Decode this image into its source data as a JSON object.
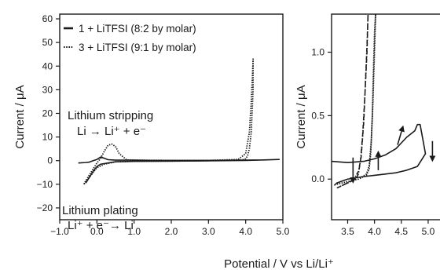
{
  "chart_data": [
    {
      "type": "line",
      "panel": "left",
      "xlabel": "Potential / V vs Li/Li⁺",
      "ylabel": "Current / μA",
      "xlim": [
        -1.0,
        5.0
      ],
      "ylim": [
        -25,
        62
      ],
      "xticks": [
        "−1.0",
        "0.0",
        "1.0",
        "2.0",
        "3.0",
        "4.0",
        "5.0"
      ],
      "xtick_values": [
        -1,
        0,
        1,
        2,
        3,
        4,
        5
      ],
      "yticks": [
        "60",
        "50",
        "40",
        "30",
        "20",
        "10",
        "0",
        "−10",
        "−20"
      ],
      "ytick_values": [
        60,
        50,
        40,
        30,
        20,
        10,
        0,
        -10,
        -20
      ],
      "legend": [
        {
          "label": "1 + LiTFSI (8:2 by molar)",
          "style": "solid"
        },
        {
          "label": "3 + LiTFSI (9:1 by molar)",
          "style": "dotted"
        }
      ],
      "annotations": [
        {
          "text": "Lithium stripping",
          "x": 0.75,
          "y": 17
        },
        {
          "text": "Li → Li⁺ + e⁻",
          "x": 0.75,
          "y": 10
        },
        {
          "text": "Lithium plating",
          "x": 0.0,
          "y": -11
        },
        {
          "text": "Li⁺ + e⁻→ Li",
          "x": 0.0,
          "y": -18
        }
      ],
      "series": [
        {
          "style": "solid",
          "x": [
            -0.5,
            -0.3,
            -0.2,
            -0.1,
            0.0,
            0.1,
            0.2,
            0.3,
            0.5,
            0.8,
            1.0,
            1.5,
            2.0,
            3.0,
            4.0,
            4.5,
            4.9,
            4.5,
            4.0,
            3.0,
            2.0,
            1.0,
            0.5,
            0.3,
            0.1,
            0.0,
            -0.1,
            -0.2,
            -0.3
          ],
          "y": [
            -1.0,
            -0.8,
            -0.6,
            0.0,
            0.5,
            1.5,
            1.0,
            0.4,
            0.2,
            0.2,
            0.2,
            0.1,
            0.1,
            0.1,
            0.2,
            0.3,
            0.5,
            0.3,
            0.1,
            -0.1,
            -0.2,
            -0.3,
            -0.5,
            -1.0,
            -1.5,
            -2.5,
            -4.5,
            -7.0,
            -9.5
          ]
        },
        {
          "style": "dotted",
          "x": [
            -0.35,
            -0.3,
            -0.2,
            -0.1,
            0.0,
            0.1,
            0.2,
            0.3,
            0.4,
            0.5,
            0.6,
            0.8,
            1.0,
            2.0,
            3.0,
            3.8,
            4.0,
            4.1,
            4.15,
            4.18,
            4.2,
            4.2,
            4.15,
            4.1,
            4.05,
            4.0,
            3.9,
            3.0,
            2.0,
            1.0,
            0.5,
            0.2,
            0.0,
            -0.1,
            -0.2,
            -0.3,
            -0.35
          ],
          "y": [
            -10.0,
            -8.5,
            -6.0,
            -3.5,
            -1.0,
            1.0,
            4.0,
            6.5,
            7.0,
            6.0,
            3.0,
            0.3,
            0.2,
            0.1,
            0.1,
            0.5,
            3.0,
            12.0,
            25.0,
            35.0,
            43.0,
            30.0,
            12.0,
            5.0,
            2.0,
            0.8,
            0.3,
            0.0,
            -0.2,
            -0.3,
            -0.5,
            -1.5,
            -3.0,
            -5.0,
            -7.0,
            -9.0,
            -10.0
          ]
        }
      ]
    },
    {
      "type": "line",
      "panel": "right",
      "ylabel": "Current / μA",
      "xlim": [
        3.2,
        5.25
      ],
      "ylim": [
        -0.32,
        1.3
      ],
      "xticks": [
        "3.5",
        "4.0",
        "4.5",
        "5.0"
      ],
      "xtick_values": [
        3.5,
        4.0,
        4.5,
        5.0
      ],
      "yticks": [
        "1.0",
        "0.5",
        "0.0"
      ],
      "ytick_values": [
        1.0,
        0.5,
        0.0
      ],
      "series": [
        {
          "style": "solid",
          "x": [
            3.2,
            3.5,
            3.8,
            4.0,
            4.2,
            4.4,
            4.6,
            4.75,
            4.8,
            4.85,
            4.95,
            4.8,
            4.6,
            4.4,
            4.2,
            4.0,
            3.8,
            3.5,
            3.3,
            3.25
          ],
          "y": [
            0.14,
            0.13,
            0.14,
            0.16,
            0.19,
            0.24,
            0.33,
            0.38,
            0.43,
            0.43,
            0.2,
            0.1,
            0.07,
            0.05,
            0.04,
            0.03,
            0.02,
            0.0,
            -0.03,
            -0.05
          ]
        },
        {
          "style": "dashdot",
          "x": [
            3.3,
            3.4,
            3.5,
            3.6,
            3.7,
            3.75,
            3.8,
            3.83,
            3.86,
            3.88,
            3.86,
            3.82,
            3.78,
            3.74,
            3.7,
            3.65,
            3.6,
            3.5,
            3.4,
            3.3
          ],
          "y": [
            -0.07,
            -0.05,
            -0.03,
            -0.01,
            0.06,
            0.17,
            0.45,
            0.75,
            1.05,
            1.3,
            1.0,
            0.65,
            0.35,
            0.15,
            0.04,
            0.0,
            -0.01,
            -0.03,
            -0.05,
            -0.07
          ]
        },
        {
          "style": "dotted",
          "x": [
            3.3,
            3.5,
            3.7,
            3.85,
            3.9,
            3.93,
            3.96,
            3.98,
            4.0,
            4.02,
            4.0,
            3.97,
            3.94,
            3.9,
            3.85,
            3.7,
            3.5,
            3.3
          ],
          "y": [
            -0.04,
            -0.02,
            0.0,
            0.03,
            0.08,
            0.2,
            0.5,
            0.85,
            1.15,
            1.3,
            1.0,
            0.6,
            0.3,
            0.1,
            0.04,
            0.0,
            -0.02,
            -0.04
          ]
        }
      ],
      "arrows": [
        {
          "direction": "down",
          "x": 3.6,
          "y_from": 0.17,
          "y_to": -0.01
        },
        {
          "direction": "up",
          "x": 4.07,
          "y_from": 0.07,
          "y_to": 0.2
        },
        {
          "direction": "up-right",
          "x": 4.47,
          "y_from": 0.27,
          "y_to": 0.4
        },
        {
          "direction": "down",
          "x": 5.08,
          "y_from": 0.3,
          "y_to": 0.16
        }
      ]
    }
  ],
  "shared_xlabel": "Potential / V vs Li/Li⁺"
}
